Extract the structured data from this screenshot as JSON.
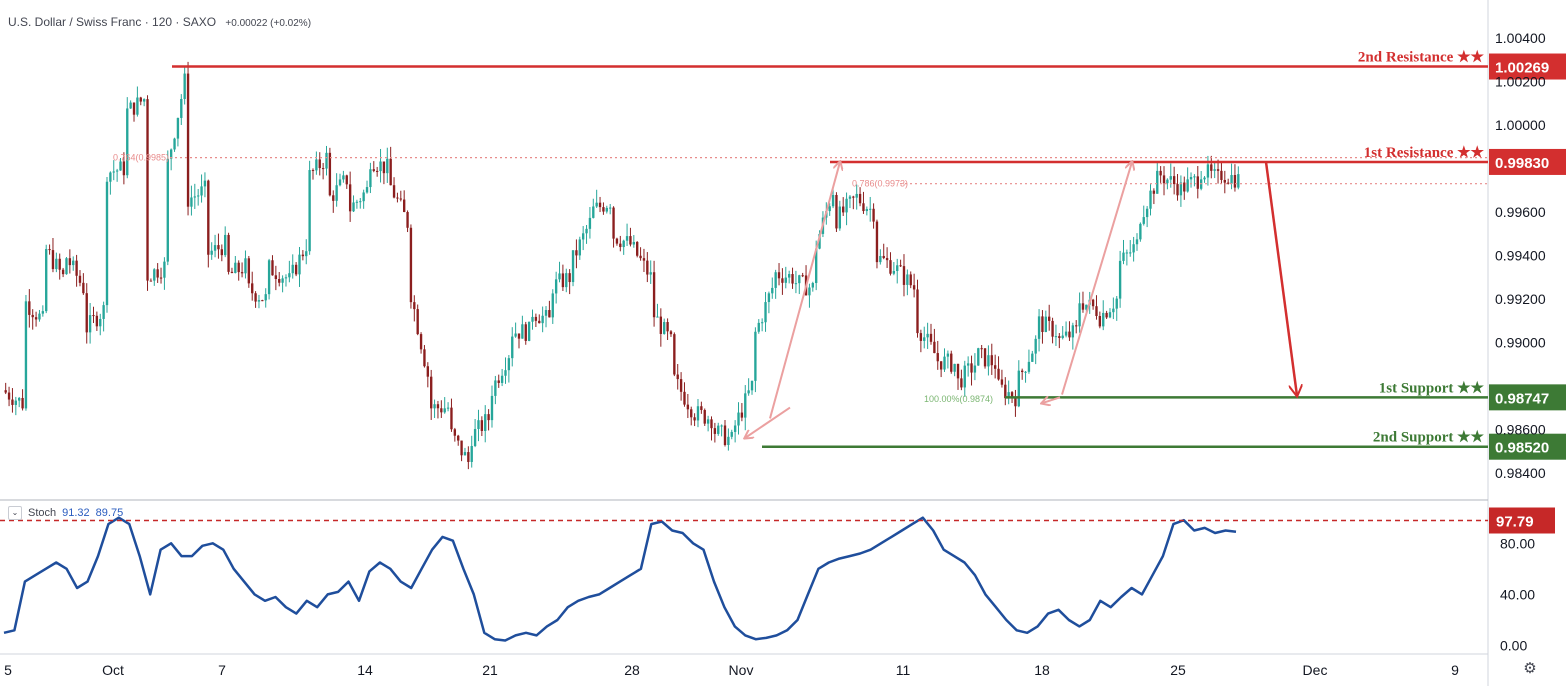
{
  "header": {
    "symbol": "U.S. Dollar / Swiss Franc · 120 · SAXO",
    "change": "+0.00022 (+0.02%)"
  },
  "chart_data": [
    {
      "type": "candlestick",
      "title": "U.S. Dollar / Swiss Franc · 120 · SAXO",
      "ylim": [
        0.9833,
        1.0046
      ],
      "y_ticks": [
        "1.00400",
        "1.00200",
        "1.00000",
        "0.99600",
        "0.99400",
        "0.99200",
        "0.99000",
        "0.98600",
        "0.98400"
      ],
      "x_ticks": [
        "5",
        "Oct",
        "7",
        "14",
        "21",
        "28",
        "Nov",
        "11",
        "18",
        "25",
        "Dec",
        "9"
      ],
      "close_path": [
        [
          0.9878,
          0.9872
        ],
        [
          0.992,
          0.991
        ],
        [
          0.9945,
          0.993
        ],
        [
          0.9942,
          0.9925
        ],
        [
          0.9905,
          0.9915
        ],
        [
          0.9978,
          0.998
        ],
        [
          1.0005,
          1.0012
        ],
        [
          0.993,
          0.9935
        ],
        [
          0.9975,
          1.002
        ],
        [
          0.9965,
          0.997
        ],
        [
          0.994,
          0.9945
        ],
        [
          0.993,
          0.9935
        ],
        [
          0.9925,
          0.992
        ],
        [
          0.9935,
          0.993
        ],
        [
          0.9925,
          0.9945
        ],
        [
          0.9975,
          0.9985
        ],
        [
          0.9965,
          0.9975
        ],
        [
          0.996,
          0.997
        ],
        [
          0.9985,
          0.998
        ],
        [
          0.9975,
          0.9955
        ],
        [
          0.993,
          0.9885
        ],
        [
          0.987,
          0.987
        ],
        [
          0.986,
          0.9845
        ],
        [
          0.9855,
          0.9865
        ],
        [
          0.9875,
          0.9895
        ],
        [
          0.9905,
          0.9905
        ],
        [
          0.9915,
          0.991
        ],
        [
          0.9925,
          0.993
        ],
        [
          0.9935,
          0.9955
        ],
        [
          0.996,
          0.9965
        ],
        [
          0.995,
          0.9945
        ],
        [
          0.9945,
          0.993
        ],
        [
          0.9915,
          0.99
        ],
        [
          0.9885,
          0.987
        ],
        [
          0.9868,
          0.9865
        ],
        [
          0.986,
          0.9855
        ],
        [
          0.9858,
          0.988
        ],
        [
          0.99,
          0.9925
        ],
        [
          0.9932,
          0.993
        ],
        [
          0.9928,
          0.9925
        ],
        [
          0.994,
          0.997
        ],
        [
          0.9955,
          0.9965
        ],
        [
          0.9968,
          0.996
        ],
        [
          0.994,
          0.9935
        ],
        [
          0.9935,
          0.9925
        ],
        [
          0.991,
          0.9895
        ],
        [
          0.9892,
          0.989
        ],
        [
          0.988,
          0.989
        ],
        [
          0.9895,
          0.989
        ],
        [
          0.988,
          0.9875
        ],
        [
          0.988,
          0.99
        ],
        [
          0.991,
          0.9905
        ],
        [
          0.99,
          0.9905
        ],
        [
          0.992,
          0.9915
        ],
        [
          0.991,
          0.992
        ],
        [
          0.9935,
          0.9945
        ],
        [
          0.9955,
          0.9975
        ],
        [
          0.9978,
          0.9972
        ],
        [
          0.997,
          0.9975
        ],
        [
          0.998,
          0.9975
        ],
        [
          0.9978,
          0.9975
        ]
      ],
      "stoch": {
        "label": "Stoch",
        "k": "91.32",
        "d": "89.75",
        "ylim": [
          -5,
          106
        ],
        "y_ticks": [
          "80.00",
          "40.00",
          "0.00"
        ],
        "level_label": "97.79",
        "level": 97.79,
        "values": [
          10,
          12,
          50,
          55,
          60,
          65,
          60,
          45,
          50,
          70,
          95,
          100,
          95,
          70,
          40,
          75,
          80,
          70,
          70,
          78,
          80,
          75,
          60,
          50,
          40,
          35,
          38,
          30,
          25,
          35,
          30,
          40,
          42,
          50,
          35,
          58,
          65,
          60,
          50,
          45,
          60,
          75,
          85,
          82,
          60,
          40,
          10,
          5,
          4,
          8,
          10,
          8,
          15,
          20,
          30,
          35,
          38,
          40,
          45,
          50,
          55,
          60,
          95,
          97,
          90,
          88,
          80,
          75,
          50,
          30,
          15,
          8,
          5,
          6,
          8,
          12,
          20,
          40,
          60,
          65,
          68,
          70,
          72,
          75,
          80,
          85,
          90,
          95,
          100,
          90,
          75,
          70,
          65,
          55,
          40,
          30,
          20,
          12,
          10,
          15,
          25,
          28,
          20,
          15,
          20,
          35,
          30,
          38,
          45,
          40,
          55,
          70,
          95,
          98,
          90,
          92,
          88,
          90,
          89
        ]
      },
      "levels": [
        {
          "name": "2nd Resistance ★★",
          "value": 1.00269,
          "label": "1.00269",
          "color": "#d32f2f"
        },
        {
          "name": "1st Resistance ★★",
          "value": 0.9983,
          "label": "0.99830",
          "color": "#d32f2f"
        },
        {
          "name": "1st Support ★★",
          "value": 0.98747,
          "label": "0.98747",
          "color": "#3d7a35"
        },
        {
          "name": "2nd Support ★★",
          "value": 0.9852,
          "label": "0.98520",
          "color": "#3d7a35"
        }
      ],
      "fib_labels": [
        {
          "text": "0.764(0.9985)",
          "value": 0.9985
        },
        {
          "text": "0.786(0.9973)",
          "value": 0.9973
        },
        {
          "text": "100.00%(0.9874)",
          "value": 0.9874
        }
      ]
    }
  ],
  "colors": {
    "up": "#26a69a",
    "down": "#8b1e1e",
    "stoch_line": "#1f4e9c",
    "resistance": "#d32f2f",
    "support": "#3d7a35",
    "pattern_arrow": "#eba0a0"
  }
}
